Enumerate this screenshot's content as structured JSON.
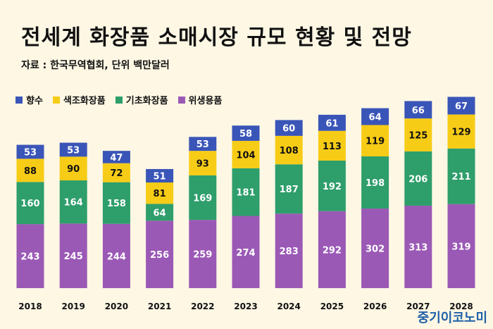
{
  "chart_data": {
    "type": "bar",
    "stacked": true,
    "title": "전세계 화장품 소매시장 규모 현황 및 전망",
    "subtitle": "자료 : 한국무역협회, 단위 백만달러",
    "categories": [
      "2018",
      "2019",
      "2020",
      "2021",
      "2022",
      "2023",
      "2024",
      "2025",
      "2026",
      "2027",
      "2028"
    ],
    "series": [
      {
        "name": "위생용품",
        "color": "#9b59b6",
        "values": [
          243,
          245,
          244,
          256,
          259,
          274,
          283,
          292,
          302,
          313,
          319
        ]
      },
      {
        "name": "기초화장품",
        "color": "#2e9e6b",
        "values": [
          160,
          164,
          158,
          64,
          169,
          181,
          187,
          192,
          198,
          206,
          211
        ]
      },
      {
        "name": "색조화장품",
        "color": "#f7cc16",
        "values": [
          88,
          90,
          72,
          81,
          93,
          104,
          108,
          113,
          119,
          125,
          129
        ]
      },
      {
        "name": "향수",
        "color": "#3a55b8",
        "values": [
          53,
          53,
          47,
          51,
          53,
          58,
          60,
          61,
          64,
          66,
          67
        ]
      }
    ],
    "legend_order": [
      "향수",
      "색조화장품",
      "기초화장품",
      "위생용품"
    ],
    "legend_position": "top-left",
    "grid": false,
    "ylim": [
      0,
      750
    ]
  },
  "brand": "중기이코노미"
}
